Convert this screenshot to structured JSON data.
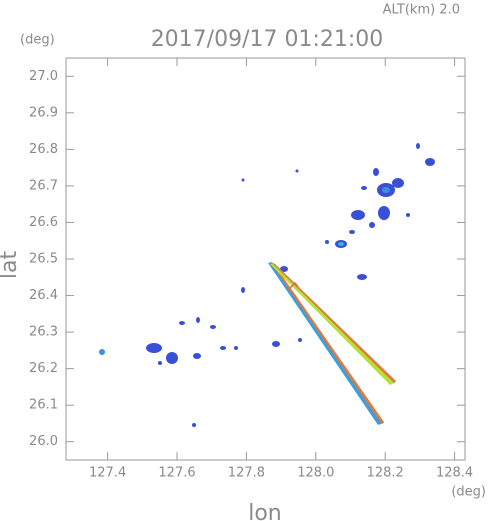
{
  "chart_data": {
    "type": "map",
    "title": "2017/09/17 01:21:00",
    "subtitle": "ALT(km)  2.0",
    "ylabel": "lat",
    "xlabel": "lon",
    "yunit": "(deg)",
    "xunit": "(deg)",
    "xlim": [
      127.28,
      128.43
    ],
    "ylim": [
      25.95,
      27.05
    ],
    "xticks": [
      127.4,
      127.6,
      127.8,
      {
        "value": 128,
        "label": "128.0"
      },
      128.2,
      128.4
    ],
    "yticks": [
      {
        "value": 26,
        "label": "26.0"
      },
      26.1,
      26.2,
      26.3,
      26.4,
      26.5,
      26.6,
      26.7,
      26.8,
      26.9,
      {
        "value": 27,
        "label": "27.0"
      }
    ]
  }
}
